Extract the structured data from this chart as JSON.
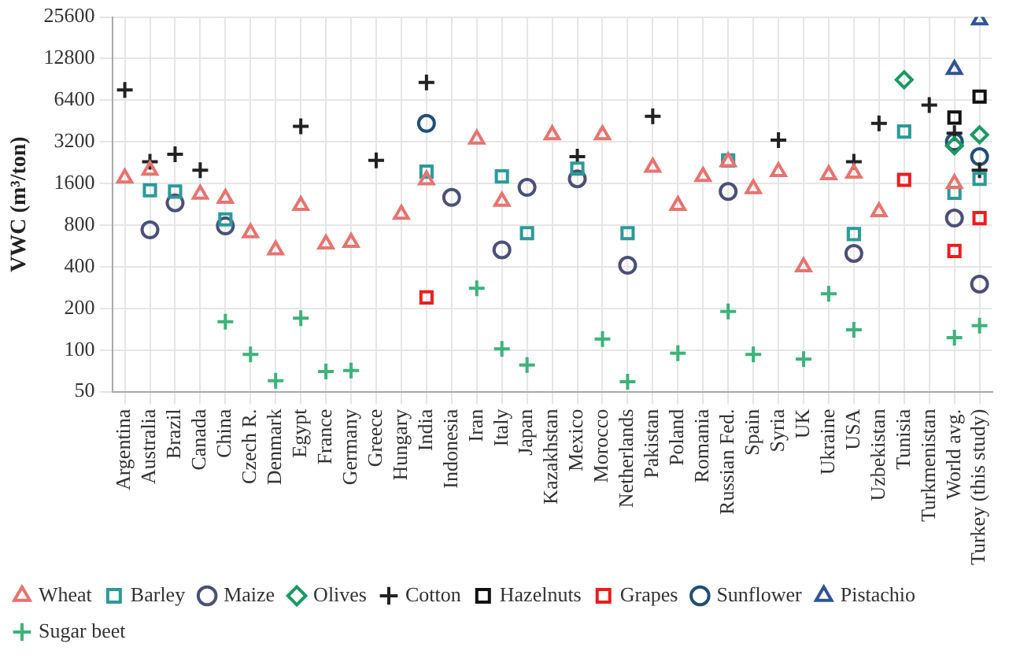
{
  "chart_data": {
    "type": "scatter",
    "ylabel": "VWC (m³/ton)",
    "log": true,
    "grid": true,
    "legend": "bottom",
    "categories": [
      "Argentina",
      "Australia",
      "Brazil",
      "Canada",
      "China",
      "Czech R.",
      "Denmark",
      "Egypt",
      "France",
      "Germany",
      "Greece",
      "Hungary",
      "India",
      "Indonesia",
      "Iran",
      "Italy",
      "Japan",
      "Kazakhstan",
      "Mexico",
      "Morocco",
      "Netherlands",
      "Pakistan",
      "Poland",
      "Romania",
      "Russian Fed.",
      "Spain",
      "Syria",
      "UK",
      "Ukraine",
      "USA",
      "Uzbekistan",
      "Tunisia",
      "Turkmenistan",
      "World avg.",
      "Turkey (this study)"
    ],
    "ylim": [
      50,
      25600
    ],
    "yticks": [
      50,
      100,
      200,
      400,
      800,
      1600,
      3200,
      6400,
      12800,
      25600
    ],
    "series": [
      {
        "name": "Wheat",
        "color": "#e8736f",
        "marker": "triangle",
        "values": [
          1750,
          2000,
          null,
          1340,
          1250,
          705,
          530,
          1110,
          585,
          600,
          null,
          960,
          1700,
          null,
          3350,
          1190,
          null,
          3600,
          null,
          3600,
          null,
          2100,
          1110,
          1800,
          2300,
          1470,
          1950,
          400,
          1850,
          1900,
          1000,
          null,
          null,
          1600,
          null
        ]
      },
      {
        "name": "Barley",
        "color": "#2a9a9a",
        "marker": "square",
        "values": [
          null,
          1430,
          1400,
          null,
          880,
          null,
          null,
          null,
          null,
          null,
          null,
          null,
          1950,
          null,
          null,
          1800,
          700,
          null,
          2050,
          null,
          700,
          null,
          null,
          null,
          2350,
          null,
          null,
          null,
          null,
          690,
          null,
          3800,
          null,
          1370,
          1730
        ]
      },
      {
        "name": "Maize",
        "color": "#4a5078",
        "marker": "circle",
        "values": [
          null,
          740,
          1160,
          null,
          790,
          null,
          null,
          null,
          null,
          null,
          null,
          null,
          null,
          1270,
          null,
          530,
          1500,
          null,
          1730,
          null,
          410,
          null,
          null,
          null,
          1400,
          null,
          null,
          null,
          null,
          500,
          null,
          null,
          null,
          900,
          300
        ]
      },
      {
        "name": "Olives",
        "color": "#1a9a60",
        "marker": "diamond",
        "values": [
          null,
          null,
          null,
          null,
          null,
          null,
          null,
          null,
          null,
          null,
          null,
          null,
          null,
          null,
          null,
          null,
          null,
          null,
          null,
          null,
          null,
          null,
          null,
          null,
          null,
          null,
          null,
          null,
          null,
          null,
          null,
          9000,
          null,
          3000,
          3600
        ]
      },
      {
        "name": "Cotton",
        "color": "#222222",
        "marker": "cross",
        "values": [
          7600,
          2300,
          2600,
          2000,
          null,
          null,
          null,
          4150,
          null,
          null,
          2350,
          null,
          8600,
          null,
          null,
          null,
          null,
          null,
          2500,
          null,
          null,
          4900,
          null,
          null,
          null,
          null,
          3300,
          null,
          null,
          2300,
          4350,
          null,
          5900,
          3700,
          2000
        ]
      },
      {
        "name": "Hazelnuts",
        "color": "#111111",
        "marker": "square",
        "values": [
          null,
          null,
          null,
          null,
          null,
          null,
          null,
          null,
          null,
          null,
          null,
          null,
          null,
          null,
          null,
          null,
          null,
          null,
          null,
          null,
          null,
          null,
          null,
          null,
          null,
          null,
          null,
          null,
          null,
          null,
          null,
          null,
          null,
          4800,
          6800
        ]
      },
      {
        "name": "Grapes",
        "color": "#ee1c1c",
        "marker": "square",
        "values": [
          null,
          null,
          null,
          null,
          null,
          null,
          null,
          null,
          null,
          null,
          null,
          null,
          240,
          null,
          null,
          null,
          null,
          null,
          null,
          null,
          null,
          null,
          null,
          null,
          null,
          null,
          null,
          null,
          null,
          null,
          null,
          1700,
          null,
          520,
          900
        ]
      },
      {
        "name": "Sunflower",
        "color": "#1f4e79",
        "marker": "circle",
        "values": [
          null,
          null,
          null,
          null,
          null,
          null,
          null,
          null,
          null,
          null,
          null,
          null,
          4350,
          null,
          null,
          null,
          null,
          null,
          null,
          null,
          null,
          null,
          null,
          null,
          null,
          null,
          null,
          null,
          null,
          null,
          null,
          null,
          null,
          3200,
          2500
        ]
      },
      {
        "name": "Pistachio",
        "color": "#2f5597",
        "marker": "triangle",
        "values": [
          null,
          null,
          null,
          null,
          null,
          null,
          null,
          null,
          null,
          null,
          null,
          null,
          null,
          null,
          null,
          null,
          null,
          null,
          null,
          null,
          null,
          null,
          null,
          null,
          null,
          null,
          null,
          null,
          null,
          null,
          null,
          null,
          null,
          10700,
          24400
        ]
      },
      {
        "name": "Sugar beet",
        "color": "#3cb37a",
        "marker": "cross",
        "values": [
          null,
          null,
          null,
          null,
          160,
          93,
          60,
          170,
          70,
          71,
          null,
          null,
          null,
          null,
          280,
          102,
          78,
          null,
          null,
          120,
          59,
          null,
          95,
          null,
          190,
          93,
          null,
          86,
          255,
          140,
          null,
          null,
          null,
          123,
          150
        ]
      }
    ]
  }
}
